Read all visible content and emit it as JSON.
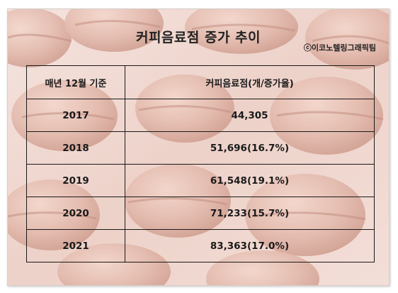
{
  "title": "커피음료점 증가 추이",
  "credit": "ⓒ이코노텔링그래픽팀",
  "table": {
    "headers": [
      "매년 12월 기준",
      "커피음료점(개/증가율)"
    ],
    "rows": [
      {
        "year": "2017",
        "value": "44,305"
      },
      {
        "year": "2018",
        "value": "51,696(16.7%)"
      },
      {
        "year": "2019",
        "value": "61,548(19.1%)"
      },
      {
        "year": "2020",
        "value": "71,233(15.7%)"
      },
      {
        "year": "2021",
        "value": "83,363(17.0%)"
      }
    ]
  },
  "colors": {
    "text": "#1a1a1a",
    "background_tint": "#c98a78"
  }
}
